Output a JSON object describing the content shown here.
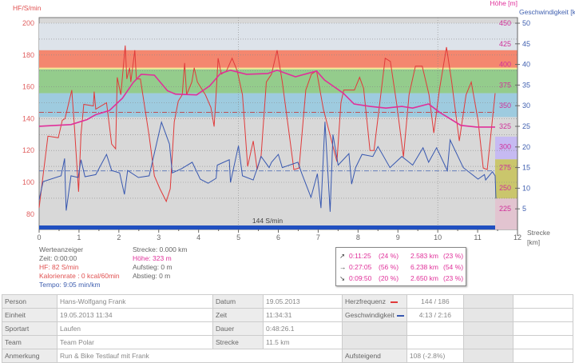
{
  "chart_data": {
    "type": "line",
    "x_label": "Strecke",
    "x_unit": "[km]",
    "xlim": [
      0,
      12
    ],
    "x_ticks": [
      0,
      1,
      2,
      3,
      4,
      5,
      6,
      7,
      8,
      9,
      10,
      11,
      12
    ],
    "left_axis": {
      "label": "HF/S/min",
      "ylim": [
        75,
        202
      ],
      "ticks": [
        80,
        100,
        120,
        140,
        160,
        180,
        200
      ]
    },
    "height_axis": {
      "label": "Höhe [m]",
      "ticks": [
        225,
        250,
        275,
        300,
        325,
        350,
        375,
        400,
        425,
        450
      ]
    },
    "right_axis": {
      "label": "Geschwindigkeit [km/h]",
      "ticks": [
        5,
        10,
        15,
        20,
        25,
        30,
        35,
        40,
        45,
        50
      ]
    },
    "grid": true,
    "hf_zones": [
      {
        "from": 183,
        "to": 200,
        "color": "#dde3ea"
      },
      {
        "from": 172,
        "to": 183,
        "color": "#f4876f"
      },
      {
        "from": 171,
        "to": 172,
        "color": "#f8e890"
      },
      {
        "from": 156,
        "to": 171,
        "color": "#94cc8c"
      },
      {
        "from": 141,
        "to": 156,
        "color": "#9ecbdf"
      }
    ],
    "speed_zones": [
      {
        "from": 17,
        "to": 22.5,
        "color": "#c6baf2"
      },
      {
        "from": 7.5,
        "to": 17,
        "color": "#cac66c"
      },
      {
        "from": 0,
        "to": 7.5,
        "color": "#e2c4d0"
      }
    ],
    "avg_hf": 144,
    "avg_speed": 14.2,
    "avg_label": "144 S/min",
    "series": [
      {
        "name": "Herzfrequenz",
        "color": "#e03a3a",
        "axis": "left",
        "points": [
          [
            0,
            84
          ],
          [
            0.22,
            129
          ],
          [
            0.48,
            128
          ],
          [
            0.58,
            139
          ],
          [
            0.65,
            140
          ],
          [
            0.82,
            158
          ],
          [
            0.88,
            137
          ],
          [
            0.99,
            94
          ],
          [
            1.05,
            130
          ],
          [
            1.12,
            149
          ],
          [
            1.36,
            148
          ],
          [
            1.38,
            157
          ],
          [
            1.42,
            146
          ],
          [
            1.69,
            150
          ],
          [
            1.82,
            124
          ],
          [
            1.92,
            121
          ],
          [
            1.96,
            166
          ],
          [
            2.05,
            155
          ],
          [
            2.16,
            186
          ],
          [
            2.2,
            165
          ],
          [
            2.27,
            172
          ],
          [
            2.3,
            163
          ],
          [
            2.4,
            183
          ],
          [
            2.44,
            165
          ],
          [
            2.54,
            165
          ],
          [
            2.76,
            129
          ],
          [
            2.89,
            104
          ],
          [
            3.03,
            96
          ],
          [
            3.19,
            88
          ],
          [
            3.29,
            96
          ],
          [
            3.39,
            138
          ],
          [
            3.49,
            151
          ],
          [
            3.59,
            155
          ],
          [
            3.65,
            175
          ],
          [
            3.7,
            155
          ],
          [
            3.83,
            163
          ],
          [
            3.89,
            172
          ],
          [
            3.97,
            163
          ],
          [
            4.17,
            155
          ],
          [
            4.31,
            147
          ],
          [
            4.39,
            135
          ],
          [
            4.43,
            151
          ],
          [
            4.49,
            178
          ],
          [
            4.57,
            168
          ],
          [
            4.7,
            170
          ],
          [
            4.84,
            178
          ],
          [
            4.97,
            170
          ],
          [
            5.1,
            155
          ],
          [
            5.23,
            110
          ],
          [
            5.37,
            126
          ],
          [
            5.47,
            108
          ],
          [
            5.57,
            117
          ],
          [
            5.7,
            163
          ],
          [
            5.83,
            168
          ],
          [
            5.97,
            183
          ],
          [
            6.1,
            163
          ],
          [
            6.39,
            108
          ],
          [
            6.52,
            109
          ],
          [
            6.69,
            158
          ],
          [
            6.83,
            168
          ],
          [
            6.96,
            170
          ],
          [
            7.13,
            146
          ],
          [
            7.47,
            113
          ],
          [
            7.57,
            150
          ],
          [
            7.64,
            158
          ],
          [
            7.91,
            158
          ],
          [
            8.04,
            166
          ],
          [
            8.14,
            159
          ],
          [
            8.3,
            120
          ],
          [
            8.4,
            120
          ],
          [
            8.57,
            155
          ],
          [
            8.68,
            178
          ],
          [
            8.81,
            176
          ],
          [
            8.97,
            149
          ],
          [
            9.14,
            116
          ],
          [
            9.28,
            155
          ],
          [
            9.44,
            173
          ],
          [
            9.61,
            173
          ],
          [
            9.78,
            155
          ],
          [
            9.9,
            131
          ],
          [
            10.04,
            158
          ],
          [
            10.22,
            185
          ],
          [
            10.35,
            163
          ],
          [
            10.54,
            126
          ],
          [
            10.71,
            155
          ],
          [
            10.84,
            163
          ],
          [
            11.01,
            139
          ],
          [
            11.14,
            109
          ],
          [
            11.24,
            108
          ],
          [
            11.44,
            156
          ]
        ]
      },
      {
        "name": "Höhe",
        "color": "#e0309a",
        "axis": "height",
        "points": [
          [
            0,
            325
          ],
          [
            0.8,
            327
          ],
          [
            1.2,
            333
          ],
          [
            1.42,
            339
          ],
          [
            1.76,
            344
          ],
          [
            2.09,
            359
          ],
          [
            2.36,
            378
          ],
          [
            2.56,
            388
          ],
          [
            2.89,
            387
          ],
          [
            3.22,
            368
          ],
          [
            3.42,
            364
          ],
          [
            3.95,
            363
          ],
          [
            4.28,
            374
          ],
          [
            4.55,
            389
          ],
          [
            4.8,
            393
          ],
          [
            5.2,
            388
          ],
          [
            5.74,
            389
          ],
          [
            5.97,
            393
          ],
          [
            6.43,
            385
          ],
          [
            6.96,
            392
          ],
          [
            7.16,
            381
          ],
          [
            7.63,
            365
          ],
          [
            7.9,
            352
          ],
          [
            8.3,
            349
          ],
          [
            8.7,
            347
          ],
          [
            9.1,
            349
          ],
          [
            9.37,
            347
          ],
          [
            9.77,
            352
          ],
          [
            10.04,
            342
          ],
          [
            10.58,
            326
          ],
          [
            10.98,
            324
          ],
          [
            11.44,
            324
          ]
        ]
      },
      {
        "name": "Geschwindigkeit",
        "color": "#3858b0",
        "axis": "right",
        "points": [
          [
            0,
            7.2
          ],
          [
            0.1,
            11.6
          ],
          [
            0.55,
            13
          ],
          [
            0.64,
            17.2
          ],
          [
            0.66,
            10
          ],
          [
            0.68,
            4.6
          ],
          [
            0.8,
            13
          ],
          [
            0.98,
            12.6
          ],
          [
            1.05,
            16.9
          ],
          [
            1.15,
            12.8
          ],
          [
            1.42,
            13.3
          ],
          [
            1.69,
            18.2
          ],
          [
            1.82,
            14.3
          ],
          [
            2.02,
            13.7
          ],
          [
            2.14,
            8.5
          ],
          [
            2.22,
            14.3
          ],
          [
            2.49,
            12.6
          ],
          [
            2.76,
            13
          ],
          [
            3.07,
            26
          ],
          [
            3.27,
            20.7
          ],
          [
            3.34,
            13.7
          ],
          [
            3.57,
            14.7
          ],
          [
            3.84,
            16.3
          ],
          [
            4.04,
            12.2
          ],
          [
            4.24,
            11.2
          ],
          [
            4.44,
            12.4
          ],
          [
            4.47,
            15.6
          ],
          [
            4.77,
            16.9
          ],
          [
            4.8,
            11.4
          ],
          [
            5.0,
            20.3
          ],
          [
            5.1,
            13
          ],
          [
            5.37,
            12
          ],
          [
            5.57,
            17.7
          ],
          [
            5.77,
            15
          ],
          [
            5.83,
            16.3
          ],
          [
            6.0,
            18.2
          ],
          [
            6.1,
            15
          ],
          [
            6.49,
            16.3
          ],
          [
            6.59,
            13.5
          ],
          [
            6.82,
            7.8
          ],
          [
            6.98,
            13.5
          ],
          [
            7.07,
            5.2
          ],
          [
            7.17,
            26.1
          ],
          [
            7.3,
            4.3
          ],
          [
            7.37,
            23
          ],
          [
            7.5,
            15.6
          ],
          [
            7.77,
            18.4
          ],
          [
            7.84,
            11
          ],
          [
            7.94,
            15
          ],
          [
            8.1,
            18.2
          ],
          [
            8.37,
            17.7
          ],
          [
            8.5,
            20.1
          ],
          [
            8.8,
            15
          ],
          [
            9.1,
            17.7
          ],
          [
            9.37,
            15.6
          ],
          [
            9.63,
            19.8
          ],
          [
            9.77,
            16.3
          ],
          [
            9.97,
            19.8
          ],
          [
            10.24,
            14.3
          ],
          [
            10.31,
            21.7
          ],
          [
            10.64,
            15
          ],
          [
            11.01,
            12.2
          ],
          [
            11.17,
            13.3
          ],
          [
            11.2,
            12
          ],
          [
            11.37,
            14
          ],
          [
            11.44,
            13
          ],
          [
            11.46,
            7.5
          ]
        ]
      }
    ]
  },
  "readout": {
    "title": "Werteanzeiger",
    "zeit": "Zeit: 0:00:00",
    "hf": "HF: 82 S/min",
    "kal": "Kalorienrate : 0 kcal/60min",
    "tempo": "Tempo: 9:05 min/km",
    "strecke": "Strecke: 0.000 km",
    "hoehe": "Höhe: 323 m",
    "aufstieg": "Aufstieg: 0 m",
    "abstieg": "Abstieg: 0 m"
  },
  "climb": [
    {
      "icon": "↗",
      "time": "0:11:25",
      "tp": "(24 %)",
      "dist": "2.583 km",
      "dp": "(23 %)"
    },
    {
      "icon": "→",
      "time": "0:27:05",
      "tp": "(56 %)",
      "dist": "6.238 km",
      "dp": "(54 %)"
    },
    {
      "icon": "↘",
      "time": "0:09:50",
      "tp": "(20 %)",
      "dist": "2.650 km",
      "dp": "(23 %)"
    }
  ],
  "table": {
    "person_l": "Person",
    "person": "Hans-Wolfgang Frank",
    "datum_l": "Datum",
    "datum": "19.05.2013",
    "hf_l": "Herzfrequenz",
    "hf": "144 / 186",
    "hf_color": "#e03a3a",
    "einheit_l": "Einheit",
    "einheit": "19.05.2013 11:34",
    "zeit_l": "Zeit",
    "zeit": "11:34:31",
    "gesch_l": "Geschwindigkeit",
    "gesch": "4:13 / 2:16",
    "gesch_color": "#3858b0",
    "sport_l": "Sportart",
    "sport": "Laufen",
    "dauer_l": "Dauer",
    "dauer": "0:48:26.1",
    "team_l": "Team",
    "team": "Team Polar",
    "strecke_l": "Strecke",
    "strecke": "11.5 km",
    "anm_l": "Anmerkung",
    "anm": "Run & Bike Testlauf mit Frank",
    "auf_l": "Aufsteigend",
    "auf": "108 (-2.8%)"
  }
}
